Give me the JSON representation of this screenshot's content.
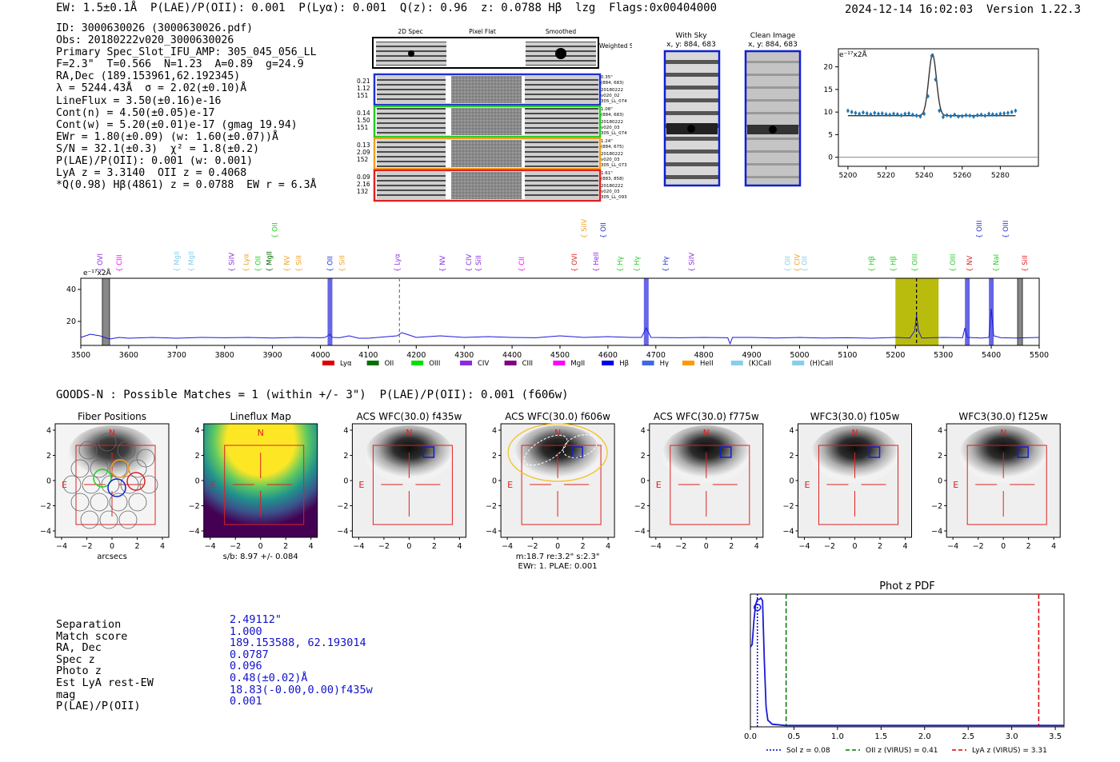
{
  "header": {
    "left": "EW: 1.5±0.1Å  P(LAE)/P(OII): 0.001  P(Lyα): 0.001  Q(z): 0.96  z: 0.0788 Hβ  lzg  Flags:0x00404000",
    "right": "2024-12-14 16:02:03  Version 1.22.3"
  },
  "info_lines": [
    "ID: 3000630026 (3000630026.pdf)",
    "Obs: 20180222v020_3000630026",
    "Primary Spec_Slot_IFU_AMP: 305_045_056_LL",
    "F=2.3\"  T=0.566  N=1.23  A=0.89  g=24.9",
    "RA,Dec (189.153961,62.192345)",
    "λ = 5244.43Å  σ = 2.02(±0.10)Å",
    "LineFlux = 3.50(±0.16)e-16",
    "Cont(n) = 4.50(±0.05)e-17",
    "Cont(w) = 5.20(±0.01)e-17 (gmag 19.94)",
    "EWr = 1.80(±0.09) (w: 1.60(±0.07))Å",
    "S/N = 32.1(±0.3)  χ² = 1.8(±0.2)",
    "P(LAE)/P(OII): 0.001 (w: 0.001)",
    "LyA z = 3.3140  OII z = 0.4068",
    "*Q(0.98) Hβ(4861) z = 0.0788  EW r = 6.3Å"
  ],
  "cutouts": {
    "col_headers": [
      "2D Spec",
      "Pixel Flat",
      "Smoothed"
    ],
    "weighted_sum": "Weighted Sum",
    "rows": [
      {
        "left": [
          "0.21",
          "1.12",
          "151"
        ],
        "right": [
          "0.35\"",
          "(884, 683)",
          "20180222",
          "v020_02",
          "305_LL_074"
        ],
        "color": "#2030d0"
      },
      {
        "left": [
          "0.14",
          "1.50",
          "151"
        ],
        "right": [
          "1.08\"",
          "(884, 683)",
          "20180222",
          "v020_03",
          "305_LL_074"
        ],
        "color": "#22cc22"
      },
      {
        "left": [
          "0.13",
          "2.09",
          "152"
        ],
        "right": [
          "1.24\"",
          "(884, 675)",
          "20180222",
          "v020_03",
          "305_LL_073"
        ],
        "color": "#f0a020"
      },
      {
        "left": [
          "0.09",
          "2.16",
          "132"
        ],
        "right": [
          "1.61\"",
          "(883, 858)",
          "20180222",
          "v020_03",
          "305_LL_093"
        ],
        "color": "#e02020"
      }
    ]
  },
  "sky": {
    "with_sky_title": "With Sky",
    "clean_title": "Clean Image",
    "xy": "x, y: 884, 683"
  },
  "fiber_panels": [
    {
      "title": "Fiber Positions",
      "caption": "arcsecs"
    },
    {
      "title": "Lineflux Map",
      "caption": "s/b: 8.97 +/- 0.084"
    },
    {
      "title": "ACS WFC(30.0) f435w",
      "caption": ""
    },
    {
      "title": "ACS WFC(30.0) f606w",
      "caption": "m:18.7  re:3.2\"  s:2.3\"",
      "caption2": "EWr: 1. PLAE: 0.001"
    },
    {
      "title": "ACS WFC(30.0) f775w",
      "caption": ""
    },
    {
      "title": "WFC3(30.0) f105w",
      "caption": ""
    },
    {
      "title": "WFC3(30.0) f125w",
      "caption": ""
    }
  ],
  "panel_axis_ticks": [
    "4",
    "2",
    "0",
    "−2",
    "−4"
  ],
  "panel_x_ticks": [
    "−4",
    "−2",
    "0",
    "2",
    "4"
  ],
  "north_label": "N",
  "east_label": "E",
  "goods_line": "GOODS-N : Possible Matches = 1 (within +/- 3\")  P(LAE)/P(OII): 0.001 (f606w)",
  "match": {
    "labels": [
      "Separation",
      "Match score",
      "RA, Dec",
      "Spec z",
      "Photo z",
      "Est LyA rest-EW",
      "mag",
      "P(LAE)/P(OII)"
    ],
    "values": [
      "2.49112\"",
      "1.000",
      "189.153588, 62.193014",
      "0.0787",
      "0.096",
      "0.48(±0.02)Å",
      "18.83(-0.00,0.00)f435w",
      "0.001"
    ]
  },
  "chart_data": [
    {
      "id": "zoom_spectrum",
      "type": "scatter",
      "title": "",
      "unit_label": "e⁻¹⁷x2Å",
      "xlim": [
        5195,
        5300
      ],
      "ylim": [
        -2,
        24
      ],
      "x_ticks": [
        5200,
        5220,
        5240,
        5260,
        5280
      ],
      "y_ticks": [
        0,
        5,
        10,
        15,
        20
      ],
      "points_x": [
        5200,
        5202,
        5204,
        5206,
        5208,
        5210,
        5212,
        5214,
        5216,
        5218,
        5220,
        5222,
        5224,
        5226,
        5228,
        5230,
        5232,
        5234,
        5236,
        5238,
        5240,
        5242,
        5244,
        5246,
        5248,
        5250,
        5252,
        5254,
        5256,
        5258,
        5260,
        5262,
        5264,
        5266,
        5268,
        5270,
        5272,
        5274,
        5276,
        5278,
        5280,
        5282,
        5284,
        5286,
        5288
      ],
      "points_y": [
        10.3,
        10.0,
        9.8,
        9.6,
        9.9,
        9.7,
        9.5,
        9.8,
        9.6,
        9.7,
        9.5,
        9.4,
        9.6,
        9.5,
        9.3,
        9.6,
        9.7,
        9.4,
        9.2,
        9.0,
        9.6,
        13.5,
        22.4,
        17.2,
        10.3,
        8.9,
        9.3,
        9.1,
        9.4,
        9.0,
        9.1,
        9.3,
        9.2,
        9.0,
        9.3,
        9.4,
        9.2,
        9.6,
        9.5,
        9.4,
        9.6,
        9.7,
        9.8,
        10.0,
        10.3
      ],
      "fit": {
        "continuum": 9.2,
        "center": 5244.43,
        "sigma": 2.02,
        "amplitude": 13.6,
        "x_range": [
          5200,
          5288
        ]
      }
    },
    {
      "id": "full_spectrum",
      "type": "line",
      "unit_label": "e⁻¹⁷x2Å",
      "xlim": [
        3500,
        5500
      ],
      "ylim": [
        5,
        47
      ],
      "x_ticks": [
        3500,
        3600,
        3700,
        3800,
        3900,
        4000,
        4100,
        4200,
        4300,
        4400,
        4500,
        4600,
        4700,
        4800,
        4900,
        5000,
        5100,
        5200,
        5300,
        5400,
        5500
      ],
      "y_ticks": [
        20,
        40
      ],
      "spectrum": [
        [
          3500,
          10
        ],
        [
          3520,
          12
        ],
        [
          3540,
          11
        ],
        [
          3560,
          9
        ],
        [
          3580,
          10
        ],
        [
          3600,
          9.5
        ],
        [
          3650,
          10
        ],
        [
          3700,
          9.5
        ],
        [
          3750,
          10
        ],
        [
          3800,
          9.8
        ],
        [
          3850,
          10
        ],
        [
          3900,
          9.6
        ],
        [
          3950,
          10
        ],
        [
          4000,
          9.8
        ],
        [
          4010,
          10
        ],
        [
          4020,
          12
        ],
        [
          4025,
          10
        ],
        [
          4040,
          9.8
        ],
        [
          4060,
          11
        ],
        [
          4080,
          9.5
        ],
        [
          4100,
          9.5
        ],
        [
          4120,
          10
        ],
        [
          4140,
          10.5
        ],
        [
          4160,
          11
        ],
        [
          4170,
          13
        ],
        [
          4180,
          12
        ],
        [
          4200,
          10
        ],
        [
          4250,
          11
        ],
        [
          4300,
          10
        ],
        [
          4350,
          10.5
        ],
        [
          4400,
          10
        ],
        [
          4450,
          9.8
        ],
        [
          4500,
          11
        ],
        [
          4550,
          10
        ],
        [
          4600,
          10.5
        ],
        [
          4650,
          10
        ],
        [
          4670,
          10
        ],
        [
          4680,
          16
        ],
        [
          4690,
          10
        ],
        [
          4750,
          9.8
        ],
        [
          4800,
          10
        ],
        [
          4850,
          9.8
        ],
        [
          4855,
          6
        ],
        [
          4860,
          10
        ],
        [
          4900,
          10
        ],
        [
          4950,
          9.6
        ],
        [
          5000,
          10
        ],
        [
          5050,
          9.6
        ],
        [
          5100,
          9.8
        ],
        [
          5150,
          9.5
        ],
        [
          5200,
          10
        ],
        [
          5230,
          9.6
        ],
        [
          5240,
          14
        ],
        [
          5244,
          24
        ],
        [
          5248,
          14
        ],
        [
          5255,
          9.6
        ],
        [
          5300,
          10
        ],
        [
          5340,
          9.8
        ],
        [
          5345,
          16
        ],
        [
          5350,
          10
        ],
        [
          5380,
          9.6
        ],
        [
          5395,
          10
        ],
        [
          5400,
          28
        ],
        [
          5405,
          11
        ],
        [
          5420,
          9.8
        ],
        [
          5450,
          9.6
        ],
        [
          5500,
          10
        ]
      ],
      "masked_bands": [
        [
          3545,
          3560
        ],
        [
          5455,
          5465
        ]
      ],
      "highlight_bands": [
        {
          "range": [
            4015,
            4025
          ],
          "color": "#3333dd"
        },
        {
          "range": [
            4675,
            4685
          ],
          "color": "#3333dd"
        },
        {
          "range": [
            5345,
            5355
          ],
          "color": "#3333dd"
        },
        {
          "range": [
            5395,
            5405
          ],
          "color": "#3333dd"
        },
        {
          "range": [
            5200,
            5290
          ],
          "color": "#b5b800"
        }
      ],
      "vlines": [
        {
          "x": 4165,
          "style": "dashed",
          "color": "#777777"
        },
        {
          "x": 5244,
          "style": "dashed",
          "color": "#000000"
        }
      ],
      "line_labels": [
        {
          "x": 3540,
          "label": "OVI",
          "color": "#8a2be2"
        },
        {
          "x": 3580,
          "label": "CIII",
          "color": "#ff00ff"
        },
        {
          "x": 3700,
          "label": "MgII",
          "color": "#87ceeb"
        },
        {
          "x": 3730,
          "label": "MgII",
          "color": "#87ceeb"
        },
        {
          "x": 3815,
          "label": "SiIV",
          "color": "#8a2be2"
        },
        {
          "x": 3845,
          "label": "Lyα",
          "color": "#f0a020"
        },
        {
          "x": 3870,
          "label": "OII",
          "color": "#22cc22"
        },
        {
          "x": 3893,
          "label": "MgII",
          "color": "#006400"
        },
        {
          "x": 3930,
          "label": "NV",
          "color": "#f0a020"
        },
        {
          "x": 3955,
          "label": "SiII",
          "color": "#f0a020"
        },
        {
          "x": 3905,
          "label": "OII",
          "color": "#22cc22",
          "high": true
        },
        {
          "x": 4020,
          "label": "OII",
          "color": "#2030d0"
        },
        {
          "x": 4045,
          "label": "SiII",
          "color": "#f0a020"
        },
        {
          "x": 4160,
          "label": "Lyα",
          "color": "#8a2be2"
        },
        {
          "x": 4255,
          "label": "NV",
          "color": "#8a2be2"
        },
        {
          "x": 4310,
          "label": "CIV",
          "color": "#8a2be2"
        },
        {
          "x": 4330,
          "label": "SiII",
          "color": "#8a2be2"
        },
        {
          "x": 4420,
          "label": "CII",
          "color": "#ff00ff"
        },
        {
          "x": 4530,
          "label": "OVI",
          "color": "#e02020"
        },
        {
          "x": 4550,
          "label": "SiIV",
          "color": "#f0a020",
          "high": true
        },
        {
          "x": 4590,
          "label": "OII",
          "color": "#2030d0",
          "high": true
        },
        {
          "x": 4575,
          "label": "HeII",
          "color": "#8a2be2"
        },
        {
          "x": 4625,
          "label": "Hγ",
          "color": "#22cc22"
        },
        {
          "x": 4660,
          "label": "Hγ",
          "color": "#22cc22"
        },
        {
          "x": 4720,
          "label": "Hγ",
          "color": "#2030d0"
        },
        {
          "x": 4775,
          "label": "SiIV",
          "color": "#8a2be2"
        },
        {
          "x": 4975,
          "label": "OII",
          "color": "#87ceeb"
        },
        {
          "x": 4995,
          "label": "CIV",
          "color": "#f0a020"
        },
        {
          "x": 5010,
          "label": "OII",
          "color": "#87ceeb"
        },
        {
          "x": 5150,
          "label": "Hβ",
          "color": "#22cc22"
        },
        {
          "x": 5195,
          "label": "Hβ",
          "color": "#22cc22"
        },
        {
          "x": 5240,
          "label": "OIII",
          "color": "#22cc22"
        },
        {
          "x": 5320,
          "label": "OIII",
          "color": "#22cc22"
        },
        {
          "x": 5355,
          "label": "NV",
          "color": "#e02020"
        },
        {
          "x": 5375,
          "label": "OIII",
          "color": "#2030d0",
          "high": true
        },
        {
          "x": 5410,
          "label": "NaI",
          "color": "#22cc22"
        },
        {
          "x": 5430,
          "label": "OIII",
          "color": "#2030d0",
          "high": true
        },
        {
          "x": 5470,
          "label": "SiII",
          "color": "#e02020"
        }
      ],
      "legend": [
        {
          "label": "Lyα",
          "color": "#e00000"
        },
        {
          "label": "OII",
          "color": "#007000"
        },
        {
          "label": "OIII",
          "color": "#00e000"
        },
        {
          "label": "CIV",
          "color": "#8a2be2"
        },
        {
          "label": "CIII",
          "color": "#800080"
        },
        {
          "label": "MgII",
          "color": "#ff00ff"
        },
        {
          "label": "Hβ",
          "color": "#0000ee"
        },
        {
          "label": "Hγ",
          "color": "#4169e1"
        },
        {
          "label": "HeII",
          "color": "#ff9900"
        },
        {
          "label": "(K)CaII",
          "color": "#87ceeb"
        },
        {
          "label": "(H)CaII",
          "color": "#87ceeb"
        }
      ]
    },
    {
      "id": "phot_z_pdf",
      "type": "line",
      "title": "Phot z PDF",
      "xlim": [
        0.0,
        3.6
      ],
      "ylim": [
        0,
        1.0
      ],
      "x_ticks": [
        0.0,
        0.5,
        1.0,
        1.5,
        2.0,
        2.5,
        3.0,
        3.5
      ],
      "curve": [
        [
          0.0,
          0.6
        ],
        [
          0.02,
          0.62
        ],
        [
          0.04,
          0.8
        ],
        [
          0.06,
          0.92
        ],
        [
          0.08,
          0.96
        ],
        [
          0.1,
          0.96
        ],
        [
          0.12,
          0.97
        ],
        [
          0.14,
          0.95
        ],
        [
          0.16,
          0.5
        ],
        [
          0.18,
          0.15
        ],
        [
          0.2,
          0.05
        ],
        [
          0.25,
          0.02
        ],
        [
          0.4,
          0.01
        ],
        [
          1.0,
          0.01
        ],
        [
          3.6,
          0.01
        ]
      ],
      "marker": {
        "x": 0.08,
        "y": 0.9
      },
      "vlines": [
        {
          "x": 0.08,
          "label": "Sol z = 0.08",
          "color": "#0000cc",
          "style": "dotted"
        },
        {
          "x": 0.41,
          "label": "OII z (VIRUS) = 0.41",
          "color": "#007700",
          "style": "dashed"
        },
        {
          "x": 3.31,
          "label": "LyA z (VIRUS) = 3.31",
          "color": "#dd0000",
          "style": "dashed"
        }
      ]
    }
  ],
  "colors": {
    "accent": "#1111cc",
    "red": "#e02020",
    "green": "#22cc22",
    "orange": "#f0a020",
    "blue": "#2030d0"
  }
}
